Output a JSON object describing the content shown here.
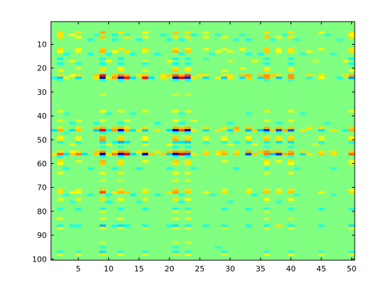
{
  "chart_data": {
    "type": "heatmap",
    "title": "",
    "xlabel": "",
    "ylabel": "",
    "xlim": [
      0.5,
      50.5
    ],
    "ylim": [
      0.5,
      100.5
    ],
    "y_reversed": true,
    "columns": 50,
    "rows": 100,
    "x_ticks": [
      5,
      10,
      15,
      20,
      25,
      30,
      35,
      40,
      45,
      50
    ],
    "y_ticks": [
      10,
      20,
      30,
      40,
      50,
      60,
      70,
      80,
      90,
      100
    ],
    "colormap": "jet",
    "clim": [
      -1,
      1
    ],
    "background_value": 0,
    "nonzero_rows": [
      {
        "row": 5,
        "values": {
          "2": 0.3,
          "5": 0.3,
          "9": 0.4,
          "12": 0.3,
          "16": 0.25,
          "21": 0.35,
          "23": 0.3,
          "26": 0.2,
          "36": 0.3,
          "40": 0.3,
          "45": 0.2,
          "50": 0.3
        }
      },
      {
        "row": 6,
        "values": {
          "2": 0.3,
          "4": 0.25,
          "8": -0.15,
          "11": -0.2,
          "13": -0.2,
          "19": -0.2,
          "24": -0.2,
          "28": -0.15,
          "32": -0.15,
          "39": -0.15,
          "46": -0.15,
          "50": 0.25
        }
      },
      {
        "row": 7,
        "values": {
          "2": 0.3,
          "5": 0.25,
          "9": 0.35,
          "13": 0.3,
          "16": 0.2,
          "21": 0.3,
          "23": 0.3,
          "26": 0.2,
          "29": 0.2,
          "36": 0.35,
          "38": 0.2,
          "40": 0.3,
          "50": 0.3
        }
      },
      {
        "row": 8,
        "values": {
          "7": -0.2,
          "11": -0.2,
          "15": -0.2,
          "20": -0.2,
          "22": -0.2,
          "31": -0.15,
          "33": -0.2,
          "37": -0.15,
          "41": -0.15,
          "48": -0.15
        }
      },
      {
        "row": 12,
        "values": {
          "2": 0.3,
          "5": 0.25,
          "9": 0.35,
          "12": 0.3,
          "16": 0.3,
          "21": 0.3,
          "23": 0.3,
          "26": 0.2,
          "29": 0.2,
          "32": 0.25,
          "36": 0.35,
          "38": 0.2,
          "40": 0.3,
          "45": 0.2,
          "50": 0.3
        }
      },
      {
        "row": 13,
        "values": {
          "2": 0.25,
          "5": 0.2,
          "9": 0.4,
          "11": 0.25,
          "13": 0.3,
          "16": 0.2,
          "21": 0.4,
          "23": 0.35,
          "28": 0.2,
          "30": 0.2,
          "36": 0.35,
          "38": 0.25,
          "40": 0.3,
          "43": 0.2,
          "50": 0.3
        }
      },
      {
        "row": 14,
        "values": {
          "3": -0.2,
          "7": -0.2,
          "10": -0.2,
          "14": -0.2,
          "18": -0.2,
          "22": -0.2,
          "27": -0.15,
          "33": -0.2,
          "35": -0.2,
          "42": -0.15,
          "47": -0.15
        }
      },
      {
        "row": 16,
        "values": {
          "2": -0.25,
          "9": -0.2,
          "12": -0.25,
          "21": -0.25,
          "23": -0.2,
          "26": -0.15,
          "36": -0.2,
          "40": -0.2,
          "50": -0.25
        }
      },
      {
        "row": 17,
        "values": {
          "4": 0.2,
          "10": 0.25,
          "16": 0.2,
          "20": 0.2,
          "30": 0.15,
          "34": 0.2,
          "44": 0.15,
          "49": 0.2
        }
      },
      {
        "row": 18,
        "values": {
          "2": -0.2,
          "5": -0.15,
          "9": -0.25,
          "12": -0.2,
          "16": -0.2,
          "21": -0.25,
          "23": -0.2,
          "36": -0.2,
          "40": -0.2,
          "50": -0.2
        }
      },
      {
        "row": 20,
        "values": {
          "5": 0.2,
          "9": 0.3,
          "12": 0.25,
          "21": 0.3,
          "23": 0.25,
          "32": 0.2,
          "36": 0.25,
          "40": 0.2
        }
      },
      {
        "row": 21,
        "values": {
          "2": 0.25,
          "9": 0.3,
          "12": 0.3,
          "16": 0.2,
          "21": 0.35,
          "23": 0.3,
          "29": 0.2,
          "36": 0.3,
          "40": 0.3,
          "50": 0.25
        }
      },
      {
        "row": 23,
        "values": {
          "2": 0.3,
          "4": 0.25,
          "5": 0.3,
          "8": 0.35,
          "9": 0.7,
          "11": 0.35,
          "12": 0.5,
          "13": 0.4,
          "15": 0.3,
          "16": 0.35,
          "19": 0.3,
          "20": 0.35,
          "21": 0.55,
          "22": 0.4,
          "23": 0.6,
          "25": 0.3,
          "26": 0.3,
          "29": 0.3,
          "30": 0.3,
          "32": 0.35,
          "33": 0.4,
          "35": 0.35,
          "36": 0.45,
          "37": 0.35,
          "38": 0.3,
          "40": 0.45,
          "43": 0.3,
          "45": 0.3,
          "49": 0.3,
          "50": 0.4
        }
      },
      {
        "row": 24,
        "values": {
          "1": -0.2,
          "2": -0.35,
          "3": 0.2,
          "5": -0.3,
          "8": 0.3,
          "9": -0.95,
          "10": 0.2,
          "11": 0.45,
          "12": -0.8,
          "13": 0.7,
          "14": -0.3,
          "16": 0.75,
          "17": -0.3,
          "19": 0.3,
          "21": -0.85,
          "22": 0.8,
          "23": -0.7,
          "24": 0.3,
          "26": -0.3,
          "28": 0.2,
          "29": -0.35,
          "30": 0.3,
          "32": -0.3,
          "33": 0.35,
          "35": -0.3,
          "36": 0.45,
          "38": -0.35,
          "40": 0.45,
          "43": -0.2,
          "45": 0.25,
          "48": -0.2,
          "50": -0.45
        }
      },
      {
        "row": 25,
        "values": {
          "2": -0.15,
          "9": -0.2,
          "12": -0.2,
          "21": -0.2,
          "23": -0.2,
          "36": -0.15,
          "40": -0.15
        }
      },
      {
        "row": 31,
        "values": {
          "9": 0.15,
          "21": 0.15,
          "23": 0.15
        }
      },
      {
        "row": 38,
        "values": {
          "2": 0.2,
          "9": 0.25,
          "12": 0.2,
          "16": 0.2,
          "21": 0.25,
          "23": 0.2,
          "36": 0.2,
          "40": 0.2,
          "50": 0.2
        }
      },
      {
        "row": 39,
        "values": {
          "3": -0.15,
          "10": -0.15,
          "14": -0.15,
          "22": -0.15,
          "33": -0.15,
          "42": -0.15
        }
      },
      {
        "row": 42,
        "values": {
          "2": 0.2,
          "5": 0.2,
          "9": 0.2,
          "13": 0.2,
          "21": 0.25,
          "24": 0.2,
          "36": 0.2,
          "40": 0.2
        }
      },
      {
        "row": 43,
        "values": {
          "4": -0.2,
          "8": -0.2,
          "12": -0.2,
          "18": -0.2,
          "22": -0.2,
          "30": -0.2,
          "38": -0.2,
          "46": -0.15
        }
      },
      {
        "row": 45,
        "values": {
          "2": 0.3,
          "5": 0.3,
          "8": 0.35,
          "9": 0.4,
          "11": 0.35,
          "12": 0.4,
          "13": 0.3,
          "16": 0.3,
          "21": 0.4,
          "22": 0.35,
          "23": 0.4,
          "26": 0.3,
          "29": 0.3,
          "31": 0.4,
          "33": 0.35,
          "36": 0.4,
          "38": 0.35,
          "40": 0.35,
          "43": 0.3,
          "45": 0.3,
          "50": 0.35
        }
      },
      {
        "row": 46,
        "values": {
          "1": -0.3,
          "2": 0.4,
          "4": -0.3,
          "5": 0.35,
          "8": -0.35,
          "9": 0.85,
          "10": -0.3,
          "11": 0.45,
          "12": -0.75,
          "13": 0.4,
          "14": -0.3,
          "15": 0.3,
          "16": -0.35,
          "18": 0.3,
          "20": -0.3,
          "21": -0.85,
          "22": 0.6,
          "23": -0.9,
          "24": 0.3,
          "26": -0.3,
          "28": 0.3,
          "30": -0.3,
          "31": 0.35,
          "33": -0.4,
          "34": 0.35,
          "35": -0.35,
          "36": -0.65,
          "37": 0.35,
          "38": -0.6,
          "39": 0.4,
          "40": -0.55,
          "42": 0.3,
          "45": -0.3,
          "47": 0.3,
          "49": -0.2,
          "50": 0.4
        }
      },
      {
        "row": 47,
        "values": {
          "3": -0.15,
          "9": -0.2,
          "12": -0.15,
          "21": -0.2,
          "23": -0.2,
          "36": -0.15,
          "38": -0.15
        }
      },
      {
        "row": 49,
        "values": {
          "2": 0.25,
          "5": 0.2,
          "9": 0.4,
          "12": 0.3,
          "16": 0.25,
          "21": 0.35,
          "23": 0.3,
          "26": 0.2,
          "29": 0.2,
          "33": 0.25,
          "36": 0.3,
          "38": 0.3,
          "40": 0.3,
          "45": 0.2,
          "50": 0.25
        }
      },
      {
        "row": 50,
        "values": {
          "2": 0.3,
          "5": 0.2,
          "9": 0.45,
          "12": 0.35,
          "16": 0.25,
          "21": 0.4,
          "23": 0.35,
          "26": 0.2,
          "29": 0.25,
          "33": 0.3,
          "36": 0.35,
          "38": 0.3,
          "40": 0.35,
          "45": 0.2,
          "50": 0.3
        }
      },
      {
        "row": 51,
        "values": {
          "2": -0.2,
          "5": -0.2,
          "9": -0.3,
          "11": -0.25,
          "12": -0.4,
          "13": -0.3,
          "16": -0.2,
          "21": -0.3,
          "22": -0.3,
          "23": -0.35,
          "26": -0.2,
          "29": -0.2,
          "31": -0.2,
          "33": -0.25,
          "36": -0.25,
          "38": -0.3,
          "40": -0.3,
          "45": -0.2,
          "50": -0.25
        }
      },
      {
        "row": 52,
        "values": {
          "4": 0.2,
          "10": 0.2,
          "16": 0.2,
          "20": 0.25,
          "30": 0.2,
          "34": 0.2,
          "44": 0.15
        }
      },
      {
        "row": 53,
        "values": {
          "9": -0.15,
          "12": -0.15,
          "21": -0.2,
          "23": -0.2,
          "36": -0.15,
          "40": -0.15
        }
      },
      {
        "row": 55,
        "values": {
          "2": 0.3,
          "4": 0.25,
          "5": 0.3,
          "8": 0.35,
          "9": 0.45,
          "11": 0.3,
          "12": 0.45,
          "13": 0.4,
          "15": 0.3,
          "16": 0.35,
          "18": 0.3,
          "20": 0.35,
          "21": 0.45,
          "22": 0.4,
          "23": 0.45,
          "26": 0.3,
          "28": 0.3,
          "29": 0.35,
          "31": 0.3,
          "33": 0.4,
          "35": 0.35,
          "36": 0.45,
          "37": 0.35,
          "38": 0.35,
          "40": 0.4,
          "42": 0.3,
          "45": 0.3,
          "47": 0.3,
          "50": 0.35
        }
      },
      {
        "row": 56,
        "values": {
          "1": 0.3,
          "2": 0.6,
          "3": -0.3,
          "4": 0.35,
          "5": 0.5,
          "6": -0.3,
          "8": 0.35,
          "9": -0.95,
          "10": 0.3,
          "11": 0.5,
          "12": -0.8,
          "13": 0.75,
          "14": -0.3,
          "16": -0.85,
          "17": 0.35,
          "19": 0.35,
          "20": -0.35,
          "21": -0.9,
          "22": 0.8,
          "23": -0.6,
          "24": 0.3,
          "26": 0.35,
          "28": 0.3,
          "29": 0.4,
          "31": 0.35,
          "33": -0.6,
          "34": 0.35,
          "36": 0.5,
          "37": -0.35,
          "38": -0.65,
          "39": 0.4,
          "40": 0.5,
          "42": -0.3,
          "43": 0.3,
          "45": 0.35,
          "47": 0.3,
          "50": 0.55
        }
      },
      {
        "row": 57,
        "values": {
          "2": -0.2,
          "9": -0.2,
          "12": -0.2,
          "21": -0.2,
          "23": -0.2,
          "36": -0.15,
          "40": -0.15
        }
      },
      {
        "row": 59,
        "values": {
          "2": 0.3,
          "5": 0.2,
          "9": 0.4,
          "12": 0.3,
          "16": 0.25,
          "21": 0.35,
          "23": 0.3,
          "29": 0.2,
          "36": 0.3,
          "38": 0.25,
          "40": 0.3,
          "50": 0.25
        }
      },
      {
        "row": 60,
        "values": {
          "2": 0.25,
          "9": 0.35,
          "12": 0.3,
          "21": 0.3,
          "23": 0.3,
          "36": 0.25,
          "40": 0.25,
          "50": 0.2
        }
      },
      {
        "row": 62,
        "values": {
          "3": -0.2,
          "7": -0.2,
          "11": -0.2,
          "15": -0.2,
          "20": -0.2,
          "24": -0.15,
          "31": -0.2,
          "36": -0.15,
          "41": -0.15,
          "47": -0.15
        }
      },
      {
        "row": 64,
        "values": {
          "2": 0.2,
          "9": 0.25,
          "12": 0.2,
          "21": 0.25,
          "23": 0.2,
          "36": 0.2,
          "40": 0.2
        }
      },
      {
        "row": 67,
        "values": {
          "9": 0.15,
          "12": 0.15,
          "21": 0.2,
          "23": 0.15
        }
      },
      {
        "row": 71,
        "values": {
          "2": 0.3,
          "5": 0.2,
          "9": 0.35,
          "12": 0.3,
          "16": 0.2,
          "21": 0.35,
          "23": 0.3,
          "29": 0.2,
          "33": 0.2,
          "36": 0.3,
          "38": 0.2,
          "40": 0.3,
          "50": 0.25
        }
      },
      {
        "row": 72,
        "values": {
          "2": 0.3,
          "4": 0.25,
          "5": 0.25,
          "9": 0.6,
          "11": 0.3,
          "12": 0.4,
          "13": 0.35,
          "16": 0.3,
          "20": 0.3,
          "21": 0.45,
          "23": 0.35,
          "26": 0.25,
          "29": 0.3,
          "33": 0.3,
          "36": 0.35,
          "38": 0.3,
          "40": 0.35,
          "45": 0.25,
          "50": 0.3
        }
      },
      {
        "row": 73,
        "values": {
          "3": -0.2,
          "7": -0.2,
          "10": -0.2,
          "14": -0.25,
          "18": -0.2,
          "22": -0.2,
          "27": -0.15,
          "34": -0.2,
          "41": -0.15,
          "47": -0.15
        }
      },
      {
        "row": 75,
        "values": {
          "2": 0.2,
          "5": 0.2,
          "9": 0.3,
          "12": 0.25,
          "16": 0.2,
          "21": 0.3,
          "23": 0.25,
          "36": 0.25,
          "40": 0.25
        }
      },
      {
        "row": 76,
        "values": {
          "4": -0.15,
          "10": -0.2,
          "15": -0.15,
          "22": -0.2,
          "30": -0.15,
          "38": -0.15
        }
      },
      {
        "row": 79,
        "values": {
          "2": -0.2,
          "5": -0.2,
          "9": -0.25,
          "12": -0.2,
          "16": -0.2,
          "21": -0.25,
          "23": -0.2,
          "29": -0.2,
          "33": -0.2,
          "36": -0.2,
          "40": -0.2,
          "45": -0.2,
          "50": -0.2
        }
      },
      {
        "row": 80,
        "values": {
          "9": 0.2,
          "21": 0.2,
          "23": 0.15,
          "36": 0.15
        }
      },
      {
        "row": 83,
        "values": {
          "2": 0.2,
          "9": 0.2,
          "12": 0.2,
          "21": 0.2,
          "23": 0.2,
          "36": 0.15,
          "40": 0.15
        }
      },
      {
        "row": 86,
        "values": {
          "2": -0.25,
          "4": -0.2,
          "5": -0.2,
          "9": -0.4,
          "11": -0.2,
          "12": -0.3,
          "13": -0.25,
          "16": -0.25,
          "20": -0.2,
          "21": -0.3,
          "23": -0.25,
          "26": -0.2,
          "29": -0.2,
          "33": -0.2,
          "36": -0.25,
          "38": 0.3,
          "40": -0.25,
          "45": -0.2,
          "50": -0.3
        }
      },
      {
        "row": 87,
        "values": {
          "2": 0.2,
          "9": 0.2,
          "12": 0.2,
          "16": 0.15,
          "21": 0.2,
          "23": 0.2,
          "29": 0.15,
          "36": 0.2,
          "40": 0.2,
          "50": 0.2
        }
      },
      {
        "row": 93,
        "values": {
          "9": 0.15,
          "21": 0.15,
          "23": 0.15
        }
      },
      {
        "row": 95,
        "values": {
          "9": -0.15,
          "21": -0.15,
          "28": -0.15
        }
      },
      {
        "row": 97,
        "values": {
          "2": -0.2,
          "5": -0.15,
          "9": -0.3,
          "12": -0.2,
          "16": -0.2,
          "21": -0.25,
          "23": -0.2,
          "29": -0.2,
          "36": -0.2,
          "40": -0.2,
          "45": -0.15,
          "50": -0.2
        }
      },
      {
        "row": 98,
        "values": {
          "2": 0.2,
          "5": 0.2,
          "9": 0.3,
          "12": 0.25,
          "16": 0.2,
          "21": 0.3,
          "23": 0.25,
          "29": 0.2,
          "36": 0.25,
          "40": 0.25,
          "45": 0.2,
          "50": 0.2
        }
      }
    ]
  }
}
